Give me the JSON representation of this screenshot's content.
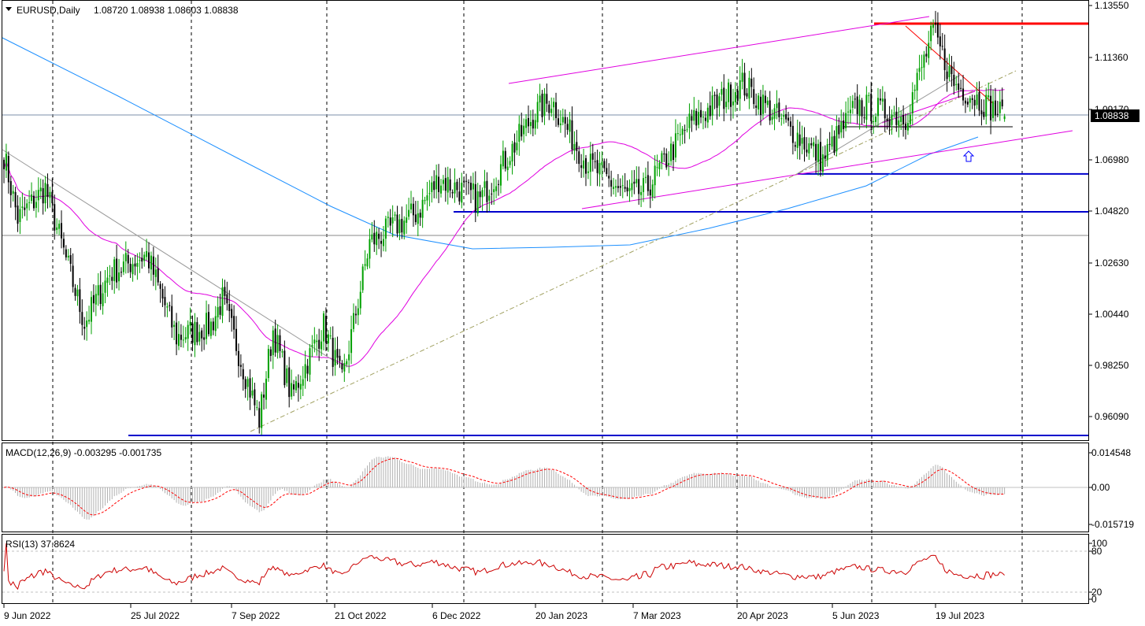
{
  "main_panel": {
    "symbol_caption": "EURUSD,Daily",
    "ohlc": "1.08720 1.08938 1.08603 1.08838",
    "current_price_label": "1.08838",
    "partially_hidden_price_label": "1.09170",
    "colors": {
      "bull": "#00a000",
      "bear": "#000000",
      "ma_fast": "#e000e0",
      "ma_slow": "#1e90ff",
      "channel": "#e000e0",
      "resistance": "#ff0000",
      "support": "#0000cc",
      "arrow": "#0000ff"
    }
  },
  "macd_panel": {
    "caption": "MACD(12,26,9) -0.003295 -0.001735",
    "ticks": [
      "0.014548",
      "0.00",
      "-0.015719"
    ]
  },
  "rsi_panel": {
    "caption": "RSI(13) 37.8624",
    "ticks": [
      "100",
      "80",
      "20",
      "0"
    ]
  },
  "chart_data": {
    "type": "candlestick",
    "title": "EURUSD,Daily",
    "x_tick_labels": [
      "9 Jun 2022",
      "25 Jul 2022",
      "7 Sep 2022",
      "21 Oct 2022",
      "6 Dec 2022",
      "20 Jan 2023",
      "7 Mar 2023",
      "20 Apr 2023",
      "5 Jun 2023",
      "19 Jul 2023"
    ],
    "y_tick_labels": [
      "1.13550",
      "1.11360",
      "1.09170",
      "1.06980",
      "1.04820",
      "1.02630",
      "1.00440",
      "0.98250",
      "0.96090"
    ],
    "y_range": [
      0.9525,
      1.1355
    ],
    "last_ohlc": {
      "open": 1.0872,
      "high": 1.08938,
      "low": 1.08603,
      "close": 1.08838
    },
    "price_path_anchors": [
      {
        "date": "2022-06-09",
        "close": 1.072
      },
      {
        "date": "2022-06-15",
        "close": 1.045
      },
      {
        "date": "2022-06-27",
        "close": 1.058
      },
      {
        "date": "2022-07-14",
        "close": 1.001
      },
      {
        "date": "2022-07-25",
        "close": 1.022
      },
      {
        "date": "2022-08-10",
        "close": 1.03
      },
      {
        "date": "2022-08-23",
        "close": 0.995
      },
      {
        "date": "2022-09-07",
        "close": 1.0
      },
      {
        "date": "2022-09-12",
        "close": 1.011
      },
      {
        "date": "2022-09-28",
        "close": 0.96
      },
      {
        "date": "2022-10-04",
        "close": 0.998
      },
      {
        "date": "2022-10-12",
        "close": 0.97
      },
      {
        "date": "2022-10-26",
        "close": 1.0
      },
      {
        "date": "2022-11-03",
        "close": 0.976
      },
      {
        "date": "2022-11-15",
        "close": 1.035
      },
      {
        "date": "2022-12-06",
        "close": 1.048
      },
      {
        "date": "2022-12-15",
        "close": 1.062
      },
      {
        "date": "2023-01-02",
        "close": 1.053
      },
      {
        "date": "2023-01-26",
        "close": 1.09
      },
      {
        "date": "2023-02-02",
        "close": 1.095
      },
      {
        "date": "2023-02-17",
        "close": 1.069
      },
      {
        "date": "2023-03-07",
        "close": 1.055
      },
      {
        "date": "2023-03-15",
        "close": 1.057
      },
      {
        "date": "2023-04-03",
        "close": 1.085
      },
      {
        "date": "2023-04-26",
        "close": 1.102
      },
      {
        "date": "2023-05-31",
        "close": 1.07
      },
      {
        "date": "2023-06-15",
        "close": 1.093
      },
      {
        "date": "2023-07-06",
        "close": 1.088
      },
      {
        "date": "2023-07-18",
        "close": 1.124
      },
      {
        "date": "2023-07-27",
        "close": 1.102
      },
      {
        "date": "2023-08-01",
        "close": 1.099
      },
      {
        "date": "2023-08-18",
        "close": 1.08838
      }
    ],
    "horizontal_levels": [
      {
        "price": 1.1275,
        "color": "#ff0000"
      },
      {
        "price": 1.064,
        "color": "#0000cc"
      },
      {
        "price": 1.048,
        "color": "#0000cc"
      },
      {
        "price": 0.9535,
        "color": "#0000cc"
      }
    ],
    "indicators": [
      "MACD(12,26,9)",
      "RSI(13)"
    ],
    "grid": "vertical dashed at date ticks"
  }
}
